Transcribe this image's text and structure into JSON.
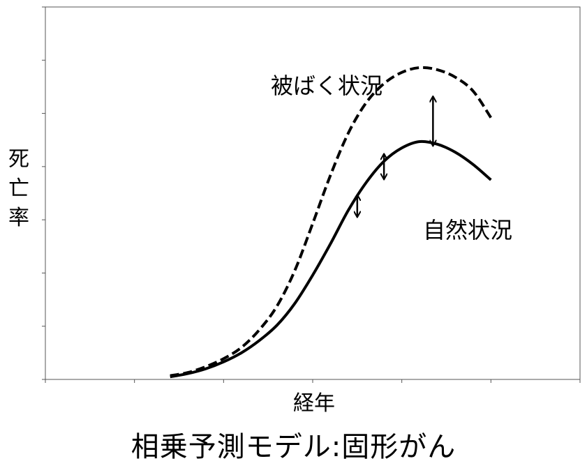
{
  "chart_data": {
    "type": "line",
    "title": "相乗予測モデル:固形がん",
    "xlabel": "経年",
    "ylabel": "死亡率",
    "x_num_ticks": 7,
    "y_num_ticks": 8,
    "tick_labels_shown": false,
    "ylim": [
      0,
      7
    ],
    "xlim": [
      0,
      6
    ],
    "series": [
      {
        "name": "被ばく状況",
        "style": "dashed",
        "x": [
          1.4,
          1.6,
          1.8,
          2.0,
          2.2,
          2.4,
          2.6,
          2.8,
          3.0,
          3.2,
          3.4,
          3.6,
          3.8,
          4.0,
          4.2,
          4.4,
          4.6,
          4.8,
          5.0
        ],
        "values": [
          0.07,
          0.13,
          0.24,
          0.39,
          0.6,
          0.93,
          1.38,
          2.05,
          2.93,
          3.84,
          4.63,
          5.2,
          5.56,
          5.77,
          5.86,
          5.82,
          5.68,
          5.42,
          4.92
        ]
      },
      {
        "name": "自然状況",
        "style": "solid",
        "x": [
          1.4,
          1.6,
          1.8,
          2.0,
          2.2,
          2.4,
          2.6,
          2.8,
          3.0,
          3.2,
          3.4,
          3.6,
          3.8,
          4.0,
          4.2,
          4.4,
          4.6,
          4.8,
          5.0
        ],
        "values": [
          0.05,
          0.11,
          0.2,
          0.33,
          0.5,
          0.73,
          1.02,
          1.43,
          1.96,
          2.55,
          3.18,
          3.7,
          4.1,
          4.35,
          4.47,
          4.42,
          4.27,
          4.04,
          3.75
        ]
      }
    ],
    "annotations": [
      {
        "type": "double-arrow",
        "x": 3.5,
        "from": 3.5,
        "to": 3.02
      },
      {
        "type": "double-arrow",
        "x": 3.8,
        "from": 4.27,
        "to": 3.73
      },
      {
        "type": "double-arrow",
        "x": 4.35,
        "from": 5.35,
        "to": 4.36
      }
    ],
    "grid": false,
    "legend": "inline labels"
  },
  "colors": {
    "line": "#000000",
    "axis": "#555555",
    "background": "#ffffff"
  }
}
